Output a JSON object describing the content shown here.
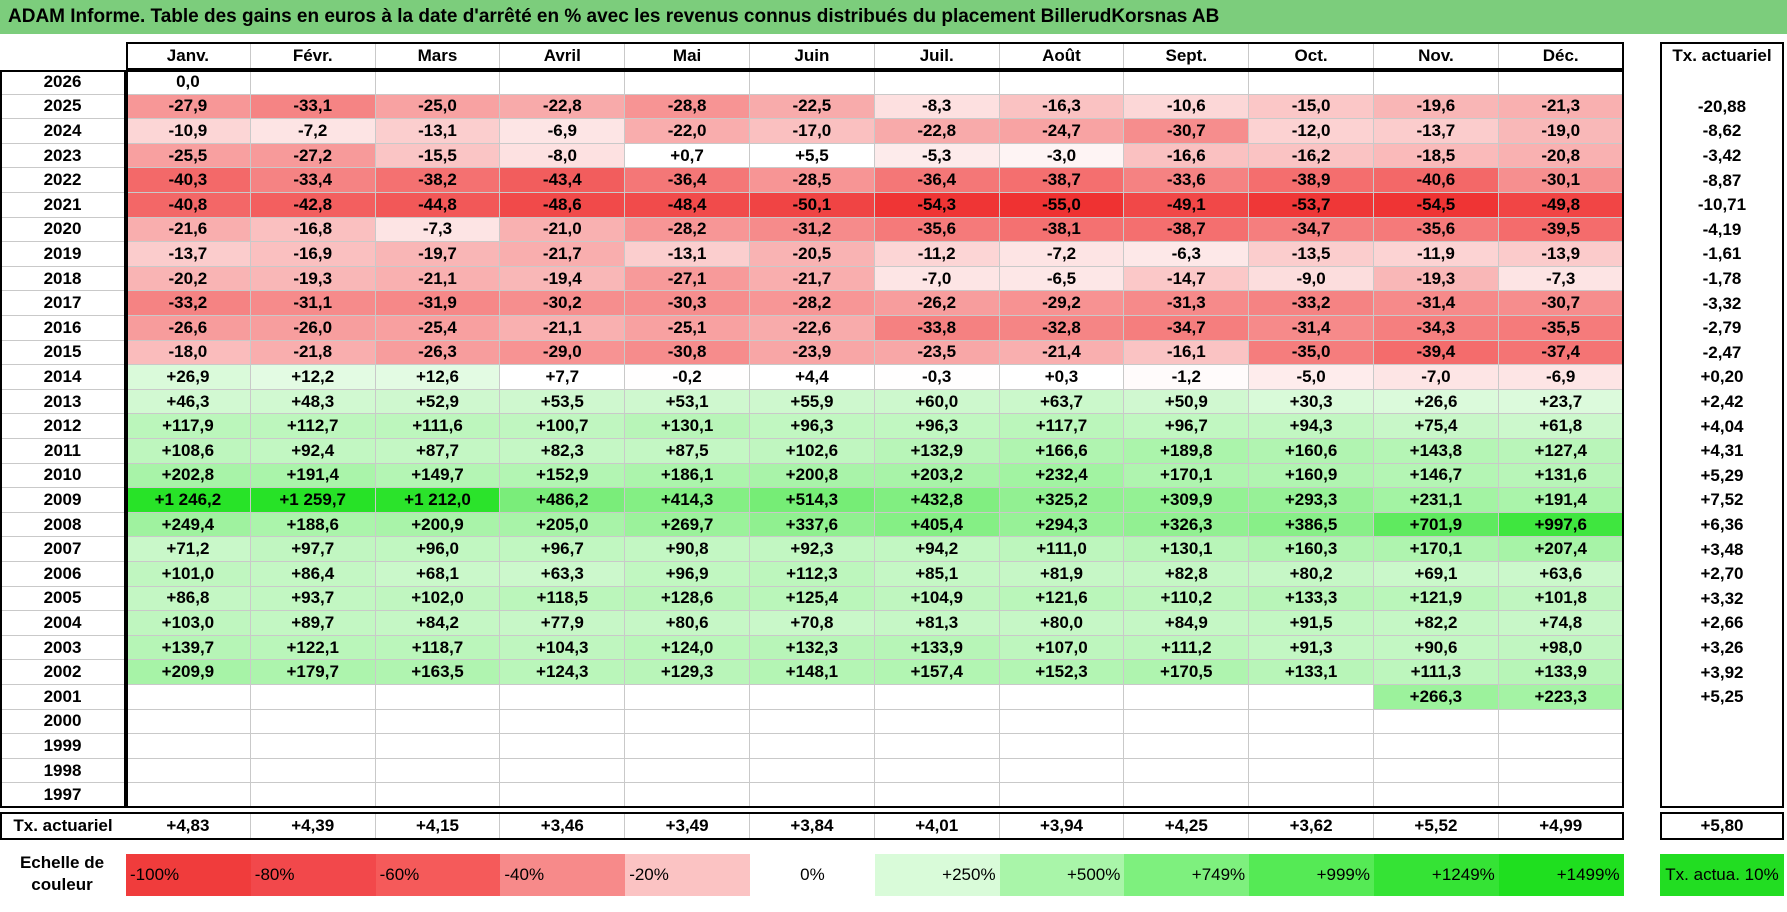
{
  "title": "ADAM Informe. Table des gains en euros à la date d'arrêté en % avec les revenus connus distribués du placement BillerudKorsnas AB",
  "chart_data": {
    "type": "heatmap",
    "title": "ADAM Informe. Table des gains en euros à la date d'arrêté en % avec les revenus connus distribués du placement BillerudKorsnas AB",
    "months": [
      "Janv.",
      "Févr.",
      "Mars",
      "Avril",
      "Mai",
      "Juin",
      "Juil.",
      "Août",
      "Sept.",
      "Oct.",
      "Nov.",
      "Déc."
    ],
    "side_header": "Tx. actuariel",
    "rows": [
      {
        "year": "2026",
        "values": [
          "0,0",
          "",
          "",
          "",
          "",
          "",
          "",
          "",
          "",
          "",
          "",
          ""
        ],
        "num": [
          0,
          null,
          null,
          null,
          null,
          null,
          null,
          null,
          null,
          null,
          null,
          null
        ],
        "tx": ""
      },
      {
        "year": "2025",
        "values": [
          "-27,9",
          "-33,1",
          "-25,0",
          "-22,8",
          "-28,8",
          "-22,5",
          "-8,3",
          "-16,3",
          "-10,6",
          "-15,0",
          "-19,6",
          "-21,3"
        ],
        "num": [
          -27.9,
          -33.1,
          -25.0,
          -22.8,
          -28.8,
          -22.5,
          -8.3,
          -16.3,
          -10.6,
          -15.0,
          -19.6,
          -21.3
        ],
        "tx": "-20,88"
      },
      {
        "year": "2024",
        "values": [
          "-10,9",
          "-7,2",
          "-13,1",
          "-6,9",
          "-22,0",
          "-17,0",
          "-22,8",
          "-24,7",
          "-30,7",
          "-12,0",
          "-13,7",
          "-19,0"
        ],
        "num": [
          -10.9,
          -7.2,
          -13.1,
          -6.9,
          -22.0,
          -17.0,
          -22.8,
          -24.7,
          -30.7,
          -12.0,
          -13.7,
          -19.0
        ],
        "tx": "-8,62"
      },
      {
        "year": "2023",
        "values": [
          "-25,5",
          "-27,2",
          "-15,5",
          "-8,0",
          "+0,7",
          "+5,5",
          "-5,3",
          "-3,0",
          "-16,6",
          "-16,2",
          "-18,5",
          "-20,8"
        ],
        "num": [
          -25.5,
          -27.2,
          -15.5,
          -8.0,
          0.7,
          5.5,
          -5.3,
          -3.0,
          -16.6,
          -16.2,
          -18.5,
          -20.8
        ],
        "tx": "-3,42"
      },
      {
        "year": "2022",
        "values": [
          "-40,3",
          "-33,4",
          "-38,2",
          "-43,4",
          "-36,4",
          "-28,5",
          "-36,4",
          "-38,7",
          "-33,6",
          "-38,9",
          "-40,6",
          "-30,1"
        ],
        "num": [
          -40.3,
          -33.4,
          -38.2,
          -43.4,
          -36.4,
          -28.5,
          -36.4,
          -38.7,
          -33.6,
          -38.9,
          -40.6,
          -30.1
        ],
        "tx": "-8,87"
      },
      {
        "year": "2021",
        "values": [
          "-40,8",
          "-42,8",
          "-44,8",
          "-48,6",
          "-48,4",
          "-50,1",
          "-54,3",
          "-55,0",
          "-49,1",
          "-53,7",
          "-54,5",
          "-49,8"
        ],
        "num": [
          -40.8,
          -42.8,
          -44.8,
          -48.6,
          -48.4,
          -50.1,
          -54.3,
          -55.0,
          -49.1,
          -53.7,
          -54.5,
          -49.8
        ],
        "tx": "-10,71"
      },
      {
        "year": "2020",
        "values": [
          "-21,6",
          "-16,8",
          "-7,3",
          "-21,0",
          "-28,2",
          "-31,2",
          "-35,6",
          "-38,1",
          "-38,7",
          "-34,7",
          "-35,6",
          "-39,5"
        ],
        "num": [
          -21.6,
          -16.8,
          -7.3,
          -21.0,
          -28.2,
          -31.2,
          -35.6,
          -38.1,
          -38.7,
          -34.7,
          -35.6,
          -39.5
        ],
        "tx": "-4,19"
      },
      {
        "year": "2019",
        "values": [
          "-13,7",
          "-16,9",
          "-19,7",
          "-21,7",
          "-13,1",
          "-20,5",
          "-11,2",
          "-7,2",
          "-6,3",
          "-13,5",
          "-11,9",
          "-13,9"
        ],
        "num": [
          -13.7,
          -16.9,
          -19.7,
          -21.7,
          -13.1,
          -20.5,
          -11.2,
          -7.2,
          -6.3,
          -13.5,
          -11.9,
          -13.9
        ],
        "tx": "-1,61"
      },
      {
        "year": "2018",
        "values": [
          "-20,2",
          "-19,3",
          "-21,1",
          "-19,4",
          "-27,1",
          "-21,7",
          "-7,0",
          "-6,5",
          "-14,7",
          "-9,0",
          "-19,3",
          "-7,3"
        ],
        "num": [
          -20.2,
          -19.3,
          -21.1,
          -19.4,
          -27.1,
          -21.7,
          -7.0,
          -6.5,
          -14.7,
          -9.0,
          -19.3,
          -7.3
        ],
        "tx": "-1,78"
      },
      {
        "year": "2017",
        "values": [
          "-33,2",
          "-31,1",
          "-31,9",
          "-30,2",
          "-30,3",
          "-28,2",
          "-26,2",
          "-29,2",
          "-31,3",
          "-33,2",
          "-31,4",
          "-30,7"
        ],
        "num": [
          -33.2,
          -31.1,
          -31.9,
          -30.2,
          -30.3,
          -28.2,
          -26.2,
          -29.2,
          -31.3,
          -33.2,
          -31.4,
          -30.7
        ],
        "tx": "-3,32"
      },
      {
        "year": "2016",
        "values": [
          "-26,6",
          "-26,0",
          "-25,4",
          "-21,1",
          "-25,1",
          "-22,6",
          "-33,8",
          "-32,8",
          "-34,7",
          "-31,4",
          "-34,3",
          "-35,5"
        ],
        "num": [
          -26.6,
          -26.0,
          -25.4,
          -21.1,
          -25.1,
          -22.6,
          -33.8,
          -32.8,
          -34.7,
          -31.4,
          -34.3,
          -35.5
        ],
        "tx": "-2,79"
      },
      {
        "year": "2015",
        "values": [
          "-18,0",
          "-21,8",
          "-26,3",
          "-29,0",
          "-30,8",
          "-23,9",
          "-23,5",
          "-21,4",
          "-16,1",
          "-35,0",
          "-39,4",
          "-37,4"
        ],
        "num": [
          -18.0,
          -21.8,
          -26.3,
          -29.0,
          -30.8,
          -23.9,
          -23.5,
          -21.4,
          -16.1,
          -35.0,
          -39.4,
          -37.4
        ],
        "tx": "-2,47"
      },
      {
        "year": "2014",
        "values": [
          "+26,9",
          "+12,2",
          "+12,6",
          "+7,7",
          "-0,2",
          "+4,4",
          "-0,3",
          "+0,3",
          "-1,2",
          "-5,0",
          "-7,0",
          "-6,9"
        ],
        "num": [
          26.9,
          12.2,
          12.6,
          7.7,
          -0.2,
          4.4,
          -0.3,
          0.3,
          -1.2,
          -5.0,
          -7.0,
          -6.9
        ],
        "tx": "+0,20"
      },
      {
        "year": "2013",
        "values": [
          "+46,3",
          "+48,3",
          "+52,9",
          "+53,5",
          "+53,1",
          "+55,9",
          "+60,0",
          "+63,7",
          "+50,9",
          "+30,3",
          "+26,6",
          "+23,7"
        ],
        "num": [
          46.3,
          48.3,
          52.9,
          53.5,
          53.1,
          55.9,
          60.0,
          63.7,
          50.9,
          30.3,
          26.6,
          23.7
        ],
        "tx": "+2,42"
      },
      {
        "year": "2012",
        "values": [
          "+117,9",
          "+112,7",
          "+111,6",
          "+100,7",
          "+130,1",
          "+96,3",
          "+96,3",
          "+117,7",
          "+96,7",
          "+94,3",
          "+75,4",
          "+61,8"
        ],
        "num": [
          117.9,
          112.7,
          111.6,
          100.7,
          130.1,
          96.3,
          96.3,
          117.7,
          96.7,
          94.3,
          75.4,
          61.8
        ],
        "tx": "+4,04"
      },
      {
        "year": "2011",
        "values": [
          "+108,6",
          "+92,4",
          "+87,7",
          "+82,3",
          "+87,5",
          "+102,6",
          "+132,9",
          "+166,6",
          "+189,8",
          "+160,6",
          "+143,8",
          "+127,4"
        ],
        "num": [
          108.6,
          92.4,
          87.7,
          82.3,
          87.5,
          102.6,
          132.9,
          166.6,
          189.8,
          160.6,
          143.8,
          127.4
        ],
        "tx": "+4,31"
      },
      {
        "year": "2010",
        "values": [
          "+202,8",
          "+191,4",
          "+149,7",
          "+152,9",
          "+186,1",
          "+200,8",
          "+203,2",
          "+232,4",
          "+170,1",
          "+160,9",
          "+146,7",
          "+131,6"
        ],
        "num": [
          202.8,
          191.4,
          149.7,
          152.9,
          186.1,
          200.8,
          203.2,
          232.4,
          170.1,
          160.9,
          146.7,
          131.6
        ],
        "tx": "+5,29"
      },
      {
        "year": "2009",
        "values": [
          "+1 246,2",
          "+1 259,7",
          "+1 212,0",
          "+486,2",
          "+414,3",
          "+514,3",
          "+432,8",
          "+325,2",
          "+309,9",
          "+293,3",
          "+231,1",
          "+191,4"
        ],
        "num": [
          1246.2,
          1259.7,
          1212.0,
          486.2,
          414.3,
          514.3,
          432.8,
          325.2,
          309.9,
          293.3,
          231.1,
          191.4
        ],
        "tx": "+7,52"
      },
      {
        "year": "2008",
        "values": [
          "+249,4",
          "+188,6",
          "+200,9",
          "+205,0",
          "+269,7",
          "+337,6",
          "+405,4",
          "+294,3",
          "+326,3",
          "+386,5",
          "+701,9",
          "+997,6"
        ],
        "num": [
          249.4,
          188.6,
          200.9,
          205.0,
          269.7,
          337.6,
          405.4,
          294.3,
          326.3,
          386.5,
          701.9,
          997.6
        ],
        "tx": "+6,36"
      },
      {
        "year": "2007",
        "values": [
          "+71,2",
          "+97,7",
          "+96,0",
          "+96,7",
          "+90,8",
          "+92,3",
          "+94,2",
          "+111,0",
          "+130,1",
          "+160,3",
          "+170,1",
          "+207,4"
        ],
        "num": [
          71.2,
          97.7,
          96.0,
          96.7,
          90.8,
          92.3,
          94.2,
          111.0,
          130.1,
          160.3,
          170.1,
          207.4
        ],
        "tx": "+3,48"
      },
      {
        "year": "2006",
        "values": [
          "+101,0",
          "+86,4",
          "+68,1",
          "+63,3",
          "+96,9",
          "+112,3",
          "+85,1",
          "+81,9",
          "+82,8",
          "+80,2",
          "+69,1",
          "+63,6"
        ],
        "num": [
          101.0,
          86.4,
          68.1,
          63.3,
          96.9,
          112.3,
          85.1,
          81.9,
          82.8,
          80.2,
          69.1,
          63.6
        ],
        "tx": "+2,70"
      },
      {
        "year": "2005",
        "values": [
          "+86,8",
          "+93,7",
          "+102,0",
          "+118,5",
          "+128,6",
          "+125,4",
          "+104,9",
          "+121,6",
          "+110,2",
          "+133,3",
          "+121,9",
          "+101,8"
        ],
        "num": [
          86.8,
          93.7,
          102.0,
          118.5,
          128.6,
          125.4,
          104.9,
          121.6,
          110.2,
          133.3,
          121.9,
          101.8
        ],
        "tx": "+3,32"
      },
      {
        "year": "2004",
        "values": [
          "+103,0",
          "+89,7",
          "+84,2",
          "+77,9",
          "+80,6",
          "+70,8",
          "+81,3",
          "+80,0",
          "+84,9",
          "+91,5",
          "+82,2",
          "+74,8"
        ],
        "num": [
          103.0,
          89.7,
          84.2,
          77.9,
          80.6,
          70.8,
          81.3,
          80.0,
          84.9,
          91.5,
          82.2,
          74.8
        ],
        "tx": "+2,66"
      },
      {
        "year": "2003",
        "values": [
          "+139,7",
          "+122,1",
          "+118,7",
          "+104,3",
          "+124,0",
          "+132,3",
          "+133,9",
          "+107,0",
          "+111,2",
          "+91,3",
          "+90,6",
          "+98,0"
        ],
        "num": [
          139.7,
          122.1,
          118.7,
          104.3,
          124.0,
          132.3,
          133.9,
          107.0,
          111.2,
          91.3,
          90.6,
          98.0
        ],
        "tx": "+3,26"
      },
      {
        "year": "2002",
        "values": [
          "+209,9",
          "+179,7",
          "+163,5",
          "+124,3",
          "+129,3",
          "+148,1",
          "+157,4",
          "+152,3",
          "+170,5",
          "+133,1",
          "+111,3",
          "+133,9"
        ],
        "num": [
          209.9,
          179.7,
          163.5,
          124.3,
          129.3,
          148.1,
          157.4,
          152.3,
          170.5,
          133.1,
          111.3,
          133.9
        ],
        "tx": "+3,92"
      },
      {
        "year": "2001",
        "values": [
          "",
          "",
          "",
          "",
          "",
          "",
          "",
          "",
          "",
          "",
          "+266,3",
          "+223,3"
        ],
        "num": [
          null,
          null,
          null,
          null,
          null,
          null,
          null,
          null,
          null,
          null,
          266.3,
          223.3
        ],
        "tx": "+5,25"
      },
      {
        "year": "2000",
        "values": [
          "",
          "",
          "",
          "",
          "",
          "",
          "",
          "",
          "",
          "",
          "",
          ""
        ],
        "num": [
          null,
          null,
          null,
          null,
          null,
          null,
          null,
          null,
          null,
          null,
          null,
          null
        ],
        "tx": ""
      },
      {
        "year": "1999",
        "values": [
          "",
          "",
          "",
          "",
          "",
          "",
          "",
          "",
          "",
          "",
          "",
          ""
        ],
        "num": [
          null,
          null,
          null,
          null,
          null,
          null,
          null,
          null,
          null,
          null,
          null,
          null
        ],
        "tx": ""
      },
      {
        "year": "1998",
        "values": [
          "",
          "",
          "",
          "",
          "",
          "",
          "",
          "",
          "",
          "",
          "",
          ""
        ],
        "num": [
          null,
          null,
          null,
          null,
          null,
          null,
          null,
          null,
          null,
          null,
          null,
          null
        ],
        "tx": ""
      },
      {
        "year": "1997",
        "values": [
          "",
          "",
          "",
          "",
          "",
          "",
          "",
          "",
          "",
          "",
          "",
          ""
        ],
        "num": [
          null,
          null,
          null,
          null,
          null,
          null,
          null,
          null,
          null,
          null,
          null,
          null
        ],
        "tx": ""
      }
    ],
    "footer_label": "Tx. actuariel",
    "footer_values": [
      "+4,83",
      "+4,39",
      "+4,15",
      "+3,46",
      "+3,49",
      "+3,84",
      "+4,01",
      "+3,94",
      "+4,25",
      "+3,62",
      "+5,52",
      "+4,99"
    ],
    "footer_total": "+5,80",
    "scale_label": "Echelle de couleur",
    "scale": [
      {
        "label": "-100%",
        "color": "#f03c3c",
        "align": "left"
      },
      {
        "label": "-80%",
        "color": "#f2484b",
        "align": "left"
      },
      {
        "label": "-60%",
        "color": "#f55a5a",
        "align": "left"
      },
      {
        "label": "-40%",
        "color": "#f78a8a",
        "align": "left"
      },
      {
        "label": "-20%",
        "color": "#fbc3c3",
        "align": "left"
      },
      {
        "label": "0%",
        "color": "#ffffff",
        "align": "center"
      },
      {
        "label": "+250%",
        "color": "#d9fbd9",
        "align": "right"
      },
      {
        "label": "+500%",
        "color": "#a9f5a9",
        "align": "right"
      },
      {
        "label": "+749%",
        "color": "#7ef07e",
        "align": "right"
      },
      {
        "label": "+999%",
        "color": "#55ea55",
        "align": "right"
      },
      {
        "label": "+1249%",
        "color": "#35e335",
        "align": "right"
      },
      {
        "label": "+1499%",
        "color": "#1fdf1f",
        "align": "right"
      }
    ],
    "tx_scale_label": "Tx. actua. 10%",
    "tx_scale_color": "#22dd22"
  }
}
